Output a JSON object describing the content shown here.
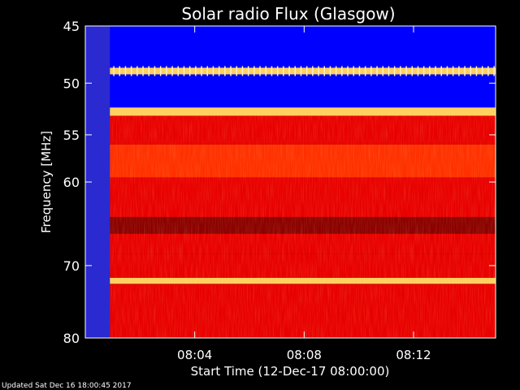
{
  "chart_data": {
    "type": "heatmap",
    "title": "Solar radio Flux (Glasgow)",
    "xlabel": "Start Time (12-Dec-17 08:00:00)",
    "ylabel": "Frequency [MHz]",
    "x_ticks": [
      "08:04",
      "08:08",
      "08:12"
    ],
    "x_tick_minutes": [
      4,
      8,
      12
    ],
    "x_range_minutes": [
      0,
      15
    ],
    "y_ticks": [
      45,
      50,
      55,
      60,
      70,
      80
    ],
    "y_scale": "log",
    "y_range": [
      45,
      80
    ],
    "y_orientation": "top-to-bottom",
    "background_color": "#000000",
    "colormap": [
      "#0000ff",
      "#2a2ad0",
      "#8a0000",
      "#e80000",
      "#ff3000",
      "#ff6a1a",
      "#ffd060"
    ],
    "early_gap_minutes": [
      0,
      0.9
    ],
    "bands": [
      {
        "freq": [
          45,
          48.6
        ],
        "level": "low"
      },
      {
        "freq": [
          48.6,
          49.2
        ],
        "level": "peak"
      },
      {
        "freq": [
          49.2,
          52.3
        ],
        "level": "low"
      },
      {
        "freq": [
          52.3,
          53.1
        ],
        "level": "peak"
      },
      {
        "freq": [
          53.1,
          56.0
        ],
        "level": "medium"
      },
      {
        "freq": [
          56.0,
          59.5
        ],
        "level": "high"
      },
      {
        "freq": [
          59.5,
          64.0
        ],
        "level": "medium"
      },
      {
        "freq": [
          64.0,
          66.0
        ],
        "level": "dark"
      },
      {
        "freq": [
          66.0,
          68.5
        ],
        "level": "medium"
      },
      {
        "freq": [
          68.5,
          71.6
        ],
        "level": "medium"
      },
      {
        "freq": [
          71.6,
          72.4
        ],
        "level": "peak"
      },
      {
        "freq": [
          72.4,
          80.0
        ],
        "level": "medium"
      }
    ]
  },
  "footer": {
    "updated": "Updated Sat Dec 16 18:00:45 2017"
  }
}
